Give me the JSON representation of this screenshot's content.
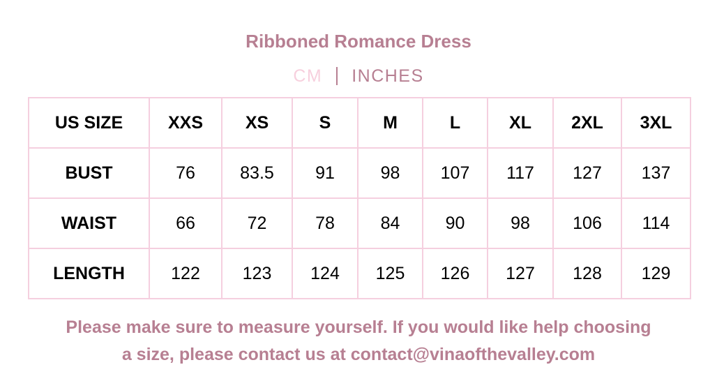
{
  "title": "Ribboned Romance Dress",
  "units": {
    "cm": "CM",
    "inches": "INCHES",
    "active": "INCHES"
  },
  "colors": {
    "accent": "#b77f92",
    "inactive": "#f7d0de",
    "border": "#f5cfdf"
  },
  "table": {
    "header": [
      "US SIZE",
      "XXS",
      "XS",
      "S",
      "M",
      "L",
      "XL",
      "2XL",
      "3XL"
    ],
    "rows": [
      [
        "BUST",
        "76",
        "83.5",
        "91",
        "98",
        "107",
        "117",
        "127",
        "137"
      ],
      [
        "WAIST",
        "66",
        "72",
        "78",
        "84",
        "90",
        "98",
        "106",
        "114"
      ],
      [
        "LENGTH",
        "122",
        "123",
        "124",
        "125",
        "126",
        "127",
        "128",
        "129"
      ]
    ]
  },
  "note": {
    "line1": "Please make sure to measure yourself. If you would like help choosing",
    "line2": "a size, please contact us at contact@vinaofthevalley.com"
  }
}
